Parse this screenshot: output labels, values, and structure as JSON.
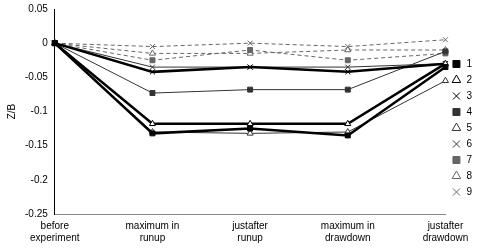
{
  "chart_data": {
    "type": "line",
    "y_label": "Z/B",
    "categories": [
      [
        "before",
        "experiment"
      ],
      [
        "maximum in",
        "runup"
      ],
      [
        "justafter",
        "runup"
      ],
      [
        "maximum in",
        "drawdown"
      ],
      [
        "justafter",
        "drawdown"
      ]
    ],
    "ylim": [
      -0.25,
      0.05
    ],
    "yticks": [
      -0.25,
      -0.2,
      -0.15,
      -0.1,
      -0.05,
      0,
      0.05
    ],
    "grid": false,
    "legend": "right",
    "series": [
      {
        "name": "1",
        "color": "#000000",
        "marker": "square",
        "line_style": "thick",
        "values": [
          0,
          -0.132,
          -0.125,
          -0.135,
          -0.035
        ]
      },
      {
        "name": "2",
        "color": "#000000",
        "marker": "triangle",
        "line_style": "thick",
        "values": [
          0,
          -0.118,
          -0.118,
          -0.118,
          -0.03
        ]
      },
      {
        "name": "3",
        "color": "#000000",
        "marker": "cross",
        "line_style": "thick",
        "values": [
          0,
          -0.042,
          -0.035,
          -0.042,
          -0.03
        ]
      },
      {
        "name": "4",
        "color": "#333333",
        "marker": "square",
        "line_style": "solid",
        "values": [
          0,
          -0.073,
          -0.068,
          -0.068,
          -0.012
        ]
      },
      {
        "name": "5",
        "color": "#333333",
        "marker": "triangle",
        "line_style": "solid",
        "values": [
          0,
          -0.13,
          -0.132,
          -0.13,
          -0.055
        ]
      },
      {
        "name": "6",
        "color": "#333333",
        "marker": "cross",
        "line_style": "solid",
        "values": [
          0,
          -0.035,
          -0.035,
          -0.035,
          -0.03
        ]
      },
      {
        "name": "7",
        "color": "#666666",
        "marker": "square",
        "line_style": "dashed",
        "values": [
          0,
          -0.025,
          -0.01,
          -0.025,
          -0.015
        ]
      },
      {
        "name": "8",
        "color": "#666666",
        "marker": "triangle",
        "line_style": "dashed",
        "values": [
          0,
          -0.015,
          -0.015,
          -0.01,
          -0.01
        ]
      },
      {
        "name": "9",
        "color": "#666666",
        "marker": "cross",
        "line_style": "dashed",
        "values": [
          0,
          -0.005,
          0,
          -0.005,
          0.005
        ]
      }
    ]
  }
}
